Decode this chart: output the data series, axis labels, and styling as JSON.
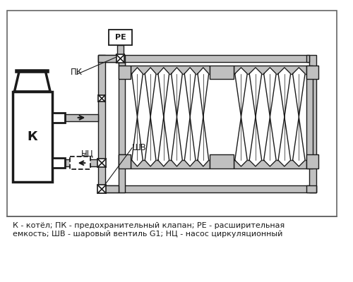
{
  "bg_color": "#ffffff",
  "diagram_bg": "#ffffff",
  "gray_pipe": "#c0c0c0",
  "dark": "#1a1a1a",
  "caption": "К - котёл; ПК - предохранительный клапан; РЕ - расширительная\nемкость; ШВ - шаровый вентиль G1; НЦ - насос циркуляционный",
  "label_PK": "ПК",
  "label_RE": "РЕ",
  "label_K": "К",
  "label_SHV": "ШВ",
  "label_NC": "НЦ",
  "caption_fontsize": 8.0,
  "label_fontsize": 8.5
}
